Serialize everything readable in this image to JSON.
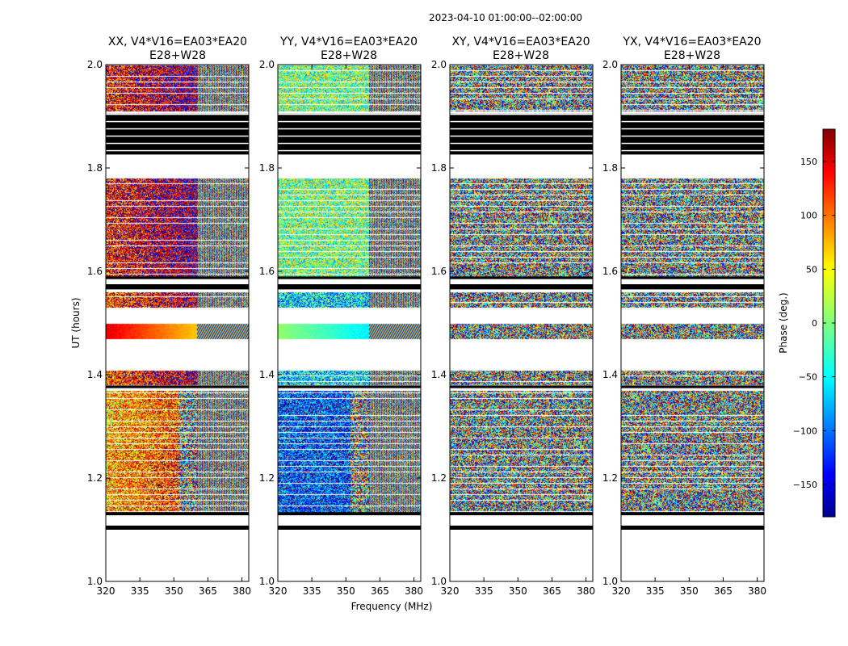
{
  "figure": {
    "suptitle": "2023-04-10  01:00:00--02:00:00",
    "xlabel": "Frequency (MHz)",
    "ylabel": "UT (hours)"
  },
  "chart_data": {
    "type": "heatmap",
    "x_range": [
      320,
      383
    ],
    "x_ticks": [
      "320",
      "335",
      "350",
      "365",
      "380"
    ],
    "x_tick_values": [
      320,
      335,
      350,
      365,
      380
    ],
    "y_range": [
      1.0,
      2.0
    ],
    "y_ticks": [
      "1.0",
      "1.2",
      "1.4",
      "1.6",
      "1.8",
      "2.0"
    ],
    "y_tick_values": [
      1.0,
      1.2,
      1.4,
      1.6,
      1.8,
      2.0
    ],
    "panels": [
      {
        "title_line1": "XX, V4*V16=EA03*EA20",
        "title_line2": "E28+W28",
        "mode": "xx"
      },
      {
        "title_line1": "YY, V4*V16=EA03*EA20",
        "title_line2": "E28+W28",
        "mode": "yy"
      },
      {
        "title_line1": "XY, V4*V16=EA03*EA20",
        "title_line2": "E28+W28",
        "mode": "noise"
      },
      {
        "title_line1": "YX, V4*V16=EA03*EA20",
        "title_line2": "E28+W28",
        "mode": "noise"
      }
    ],
    "data_blocks_ut": [
      [
        1.13,
        1.26
      ],
      [
        1.26,
        1.37
      ],
      [
        1.38,
        1.41
      ],
      [
        1.47,
        1.5
      ],
      [
        1.53,
        1.56
      ],
      [
        1.59,
        1.78
      ],
      [
        1.91,
        2.0
      ]
    ],
    "black_bands_ut": [
      [
        1.1,
        1.108
      ],
      [
        1.128,
        1.134
      ],
      [
        1.374,
        1.379
      ],
      [
        1.565,
        1.575
      ],
      [
        1.585,
        1.59
      ],
      [
        1.826,
        1.905
      ]
    ],
    "rfi_transition_mhz": 360,
    "colorbar": {
      "label": "Phase (deg.)",
      "range": [
        -180,
        180
      ],
      "ticks": [
        "−150",
        "−100",
        "−50",
        "0",
        "50",
        "100",
        "150"
      ],
      "tick_values": [
        -150,
        -100,
        -50,
        0,
        50,
        100,
        150
      ],
      "colormap": "jet"
    }
  }
}
